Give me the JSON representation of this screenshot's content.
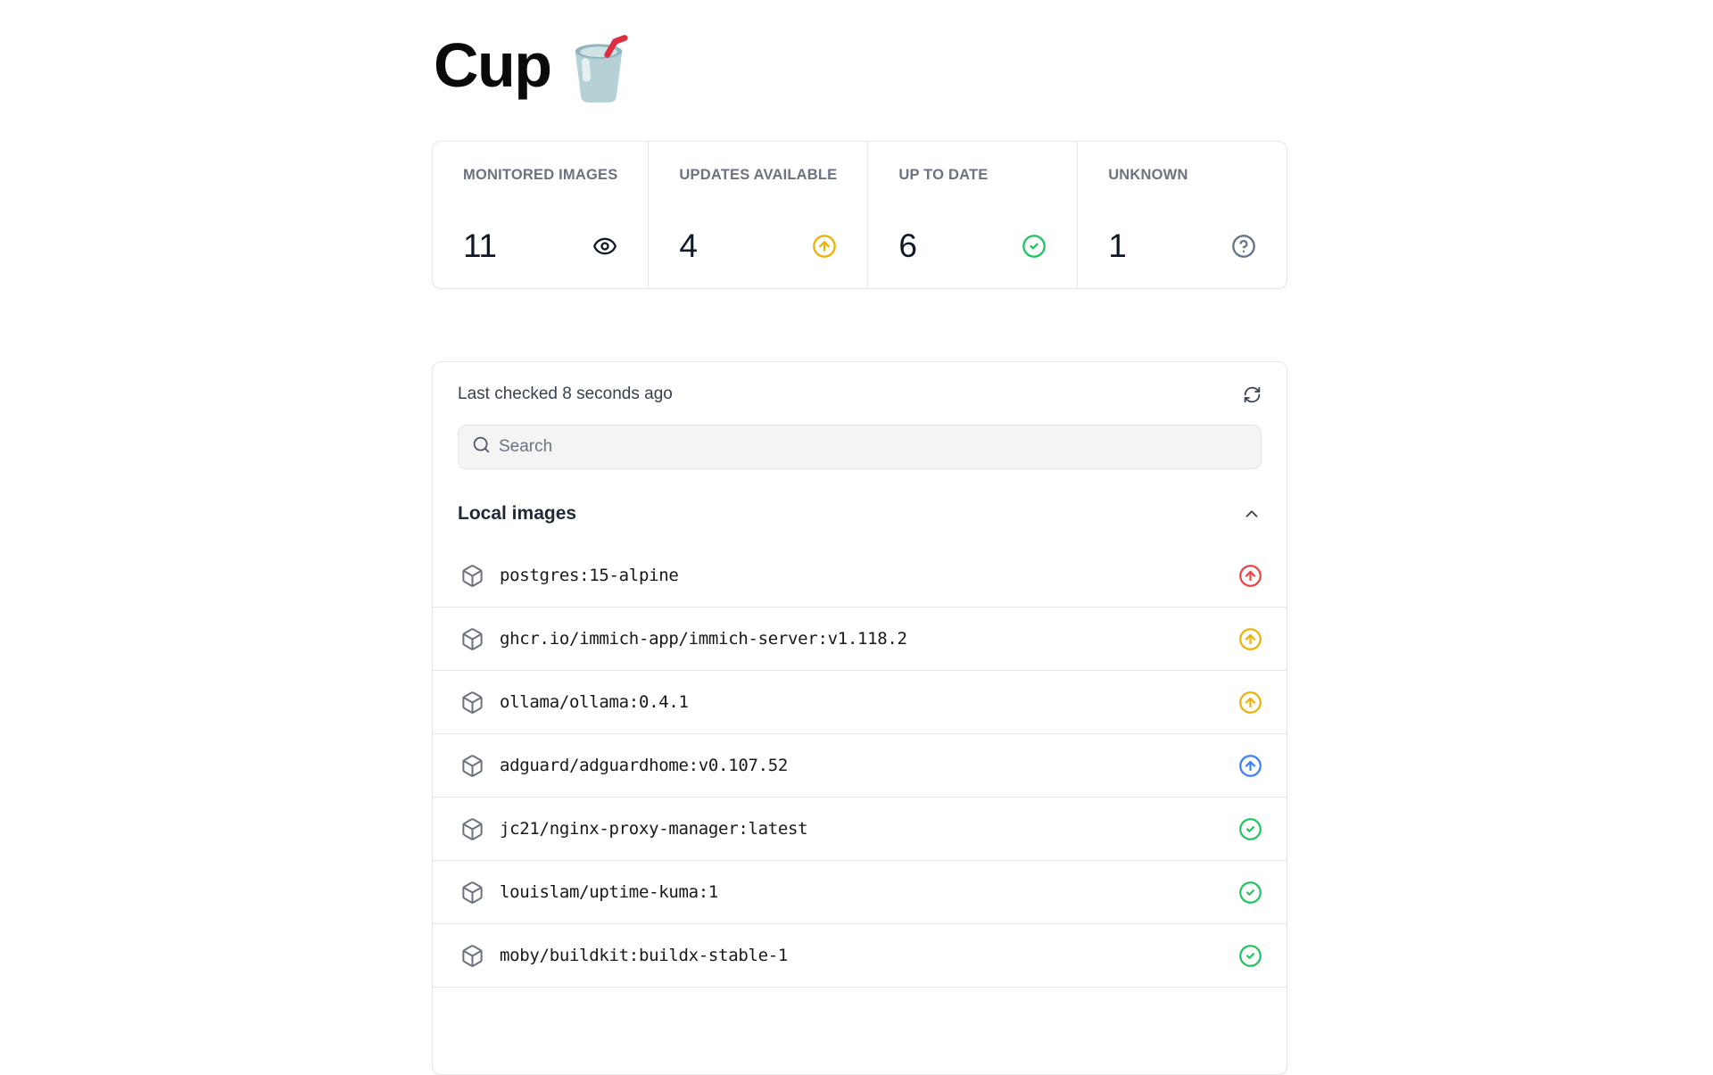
{
  "header": {
    "title": "Cup",
    "emoji": "cup-with-straw"
  },
  "stats": {
    "cards": [
      {
        "label": "MONITORED IMAGES",
        "value": "11",
        "icon": "eye-icon",
        "color": "#111827"
      },
      {
        "label": "UPDATES AVAILABLE",
        "value": "4",
        "icon": "circle-arrow-up-icon",
        "color": "#eab308"
      },
      {
        "label": "UP TO DATE",
        "value": "6",
        "icon": "circle-check-icon",
        "color": "#22c55e"
      },
      {
        "label": "UNKNOWN",
        "value": "1",
        "icon": "circle-help-icon",
        "color": "#64748b"
      }
    ]
  },
  "panel": {
    "last_checked": "Last checked 8 seconds ago",
    "search": {
      "placeholder": "Search",
      "value": ""
    },
    "section_title": "Local images",
    "images": [
      {
        "name": "postgres:15-alpine",
        "status": "update-available-major",
        "icon": "circle-arrow-up-icon",
        "color": "#ef4444"
      },
      {
        "name": "ghcr.io/immich-app/immich-server:v1.118.2",
        "status": "update-available",
        "icon": "circle-arrow-up-icon",
        "color": "#eab308"
      },
      {
        "name": "ollama/ollama:0.4.1",
        "status": "update-available",
        "icon": "circle-arrow-up-icon",
        "color": "#eab308"
      },
      {
        "name": "adguard/adguardhome:v0.107.52",
        "status": "update-available-patch",
        "icon": "circle-arrow-up-icon",
        "color": "#3b82f6"
      },
      {
        "name": "jc21/nginx-proxy-manager:latest",
        "status": "up-to-date",
        "icon": "circle-check-icon",
        "color": "#22c55e"
      },
      {
        "name": "louislam/uptime-kuma:1",
        "status": "up-to-date",
        "icon": "circle-check-icon",
        "color": "#22c55e"
      },
      {
        "name": "moby/buildkit:buildx-stable-1",
        "status": "up-to-date",
        "icon": "circle-check-icon",
        "color": "#22c55e"
      }
    ]
  }
}
